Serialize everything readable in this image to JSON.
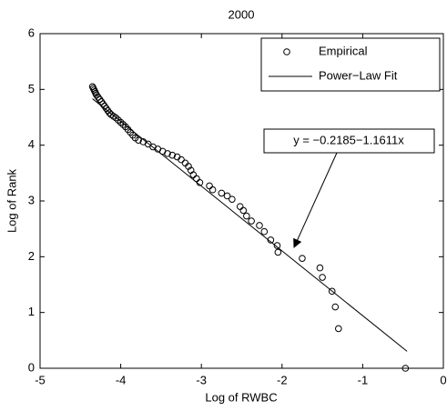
{
  "chart_data": {
    "type": "scatter",
    "title": "2000",
    "xlabel": "Log of RWBC",
    "ylabel": "Log of Rank",
    "xlim": [
      -5,
      0
    ],
    "ylim": [
      0,
      6
    ],
    "xticks": [
      -5,
      -4,
      -3,
      -2,
      -1,
      0
    ],
    "yticks": [
      0,
      1,
      2,
      3,
      4,
      5,
      6
    ],
    "legend": "upper right",
    "annotation": "y = −0.2185−1.1611x",
    "series": [
      {
        "name": "Empirical",
        "type": "scatter",
        "color": "#000000",
        "x": [
          -4.35,
          -4.34,
          -4.33,
          -4.32,
          -4.31,
          -4.3,
          -4.28,
          -4.26,
          -4.24,
          -4.22,
          -4.2,
          -4.18,
          -4.16,
          -4.14,
          -4.12,
          -4.09,
          -4.06,
          -4.03,
          -4.0,
          -3.97,
          -3.94,
          -3.91,
          -3.88,
          -3.85,
          -3.82,
          -3.78,
          -3.72,
          -3.66,
          -3.6,
          -3.54,
          -3.48,
          -3.42,
          -3.36,
          -3.3,
          -3.25,
          -3.2,
          -3.16,
          -3.13,
          -3.1,
          -3.06,
          -3.02,
          -2.9,
          -2.86,
          -2.75,
          -2.68,
          -2.62,
          -2.52,
          -2.48,
          -2.44,
          -2.38,
          -2.28,
          -2.22,
          -2.14,
          -2.06,
          -2.05,
          -1.75,
          -1.53,
          -1.5,
          -1.38,
          -1.34,
          -1.3,
          -0.47
        ],
        "values": [
          5.05,
          5.02,
          4.99,
          4.96,
          4.93,
          4.9,
          4.86,
          4.82,
          4.78,
          4.74,
          4.7,
          4.66,
          4.62,
          4.58,
          4.55,
          4.52,
          4.49,
          4.45,
          4.41,
          4.37,
          4.33,
          4.28,
          4.23,
          4.18,
          4.13,
          4.09,
          4.06,
          4.02,
          3.97,
          3.93,
          3.89,
          3.85,
          3.82,
          3.79,
          3.74,
          3.68,
          3.62,
          3.55,
          3.47,
          3.4,
          3.33,
          3.27,
          3.2,
          3.14,
          3.09,
          3.03,
          2.9,
          2.83,
          2.73,
          2.64,
          2.56,
          2.45,
          2.3,
          2.2,
          2.08,
          1.97,
          1.8,
          1.63,
          1.38,
          1.1,
          0.71,
          0.0
        ]
      },
      {
        "name": "Power−Law Fit",
        "type": "line",
        "color": "#000000",
        "x": [
          -4.35,
          -0.45
        ],
        "values": [
          4.833,
          0.304
        ]
      }
    ]
  }
}
